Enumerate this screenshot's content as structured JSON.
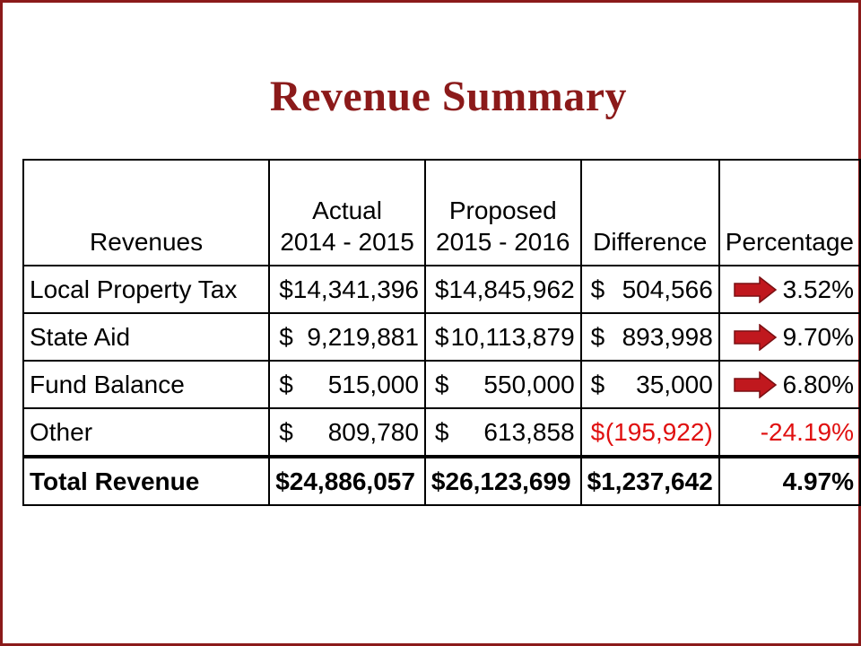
{
  "slide": {
    "title": "Revenue Summary",
    "accent_color": "#8b1a1a",
    "arrow_color": "#c0181e"
  },
  "table": {
    "headers": [
      {
        "line1": "",
        "line2": "Revenues"
      },
      {
        "line1": "Actual",
        "line2": "2014 - 2015"
      },
      {
        "line1": "Proposed",
        "line2": "2015 - 2016"
      },
      {
        "line1": "",
        "line2": "Difference"
      },
      {
        "line1": "",
        "line2": "Percentage"
      }
    ],
    "rows": [
      {
        "label": "Local Property Tax",
        "actual_sym": "$",
        "actual": "14,341,396",
        "proposed_sym": "$",
        "proposed": "14,845,962",
        "diff_sym": "$",
        "diff": "504,566",
        "pct": "3.52%",
        "arrow": "right-arrow-icon"
      },
      {
        "label": "State Aid",
        "actual_sym": "$",
        "actual": "9,219,881",
        "proposed_sym": "$",
        "proposed": "10,113,879",
        "diff_sym": "$",
        "diff": "893,998",
        "pct": "9.70%",
        "arrow": "right-arrow-icon"
      },
      {
        "label": "Fund Balance",
        "actual_sym": "$",
        "actual": "515,000",
        "proposed_sym": "$",
        "proposed": "550,000",
        "diff_sym": "$",
        "diff": "35,000",
        "pct": "6.80%",
        "arrow": "right-arrow-icon"
      },
      {
        "label": "Other",
        "actual_sym": "$",
        "actual": "809,780",
        "proposed_sym": "$",
        "proposed": "613,858",
        "diff_sym": "$",
        "diff": "(195,922)",
        "pct": "-24.19%",
        "negative": true
      }
    ],
    "total": {
      "label": "Total Revenue",
      "actual": "$24,886,057",
      "proposed": "$26,123,699",
      "diff": "$1,237,642",
      "pct": "4.97%"
    }
  }
}
